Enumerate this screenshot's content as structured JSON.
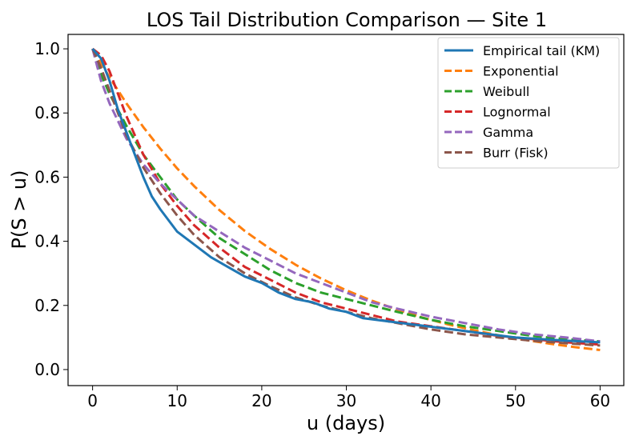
{
  "chart_data": {
    "type": "line",
    "title": "LOS Tail Distribution Comparison — Site 1",
    "xlabel": "u (days)",
    "ylabel": "P(S > u)",
    "xlim": [
      -2.9,
      62.8
    ],
    "ylim": [
      -0.05,
      1.045
    ],
    "xticks": [
      0,
      10,
      20,
      30,
      40,
      50,
      60
    ],
    "xtick_labels": [
      "0",
      "10",
      "20",
      "30",
      "40",
      "50",
      "60"
    ],
    "yticks": [
      0.0,
      0.2,
      0.4,
      0.6,
      0.8,
      1.0
    ],
    "ytick_labels": [
      "0.0",
      "0.2",
      "0.4",
      "0.6",
      "0.8",
      "1.0"
    ],
    "legend_position": "top-right",
    "grid": false,
    "series": [
      {
        "name": "Empirical tail (KM)",
        "color": "#1f77b4",
        "dash": "solid",
        "x": [
          0,
          1,
          2,
          3,
          4,
          5,
          6,
          7,
          8,
          10,
          12,
          14,
          16,
          18,
          20,
          22,
          24,
          26,
          28,
          30,
          32,
          35,
          38,
          41,
          44,
          47,
          50,
          53,
          56,
          60
        ],
        "y": [
          1.0,
          0.97,
          0.9,
          0.81,
          0.74,
          0.67,
          0.6,
          0.54,
          0.5,
          0.43,
          0.39,
          0.35,
          0.32,
          0.29,
          0.27,
          0.24,
          0.22,
          0.21,
          0.19,
          0.18,
          0.16,
          0.15,
          0.14,
          0.13,
          0.12,
          0.11,
          0.1,
          0.095,
          0.09,
          0.085
        ]
      },
      {
        "name": "Exponential",
        "color": "#ff7f0e",
        "dash": "dashed",
        "x": [
          0,
          2,
          4,
          6,
          8,
          10,
          12,
          15,
          18,
          21,
          24,
          27,
          30,
          33,
          36,
          39,
          42,
          45,
          48,
          51,
          54,
          57,
          60
        ],
        "y": [
          1.0,
          0.911,
          0.83,
          0.756,
          0.689,
          0.627,
          0.572,
          0.497,
          0.432,
          0.376,
          0.327,
          0.284,
          0.247,
          0.215,
          0.187,
          0.162,
          0.141,
          0.123,
          0.107,
          0.093,
          0.081,
          0.07,
          0.061
        ]
      },
      {
        "name": "Weibull",
        "color": "#2ca02c",
        "dash": "dashed",
        "x": [
          0,
          1,
          2,
          4,
          6,
          8,
          10,
          12,
          15,
          18,
          21,
          24,
          27,
          30,
          33,
          36,
          40,
          44,
          48,
          52,
          56,
          60
        ],
        "y": [
          1.0,
          0.92,
          0.86,
          0.76,
          0.67,
          0.6,
          0.53,
          0.48,
          0.41,
          0.36,
          0.31,
          0.27,
          0.24,
          0.22,
          0.2,
          0.18,
          0.155,
          0.135,
          0.12,
          0.105,
          0.095,
          0.088
        ]
      },
      {
        "name": "Lognormal",
        "color": "#d62728",
        "dash": "dashed",
        "x": [
          0,
          1,
          2,
          3,
          4,
          6,
          8,
          10,
          12,
          15,
          18,
          21,
          24,
          27,
          30,
          33,
          36,
          40,
          44,
          48,
          52,
          56,
          60
        ],
        "y": [
          1.0,
          0.98,
          0.93,
          0.86,
          0.79,
          0.67,
          0.58,
          0.51,
          0.45,
          0.38,
          0.32,
          0.28,
          0.24,
          0.21,
          0.19,
          0.17,
          0.15,
          0.135,
          0.12,
          0.105,
          0.095,
          0.085,
          0.078
        ]
      },
      {
        "name": "Gamma",
        "color": "#9467bd",
        "dash": "dashed",
        "x": [
          0,
          1,
          2,
          4,
          6,
          8,
          10,
          12,
          15,
          18,
          21,
          24,
          27,
          30,
          33,
          36,
          40,
          44,
          48,
          52,
          56,
          60
        ],
        "y": [
          1.0,
          0.9,
          0.83,
          0.72,
          0.64,
          0.58,
          0.53,
          0.48,
          0.43,
          0.38,
          0.34,
          0.3,
          0.27,
          0.24,
          0.21,
          0.19,
          0.165,
          0.145,
          0.125,
          0.11,
          0.1,
          0.088
        ]
      },
      {
        "name": "Burr (Fisk)",
        "color": "#8c564b",
        "dash": "dashed",
        "x": [
          0,
          1,
          2,
          3,
          4,
          6,
          8,
          10,
          12,
          15,
          18,
          21,
          24,
          27,
          30,
          33,
          36,
          40,
          44,
          48,
          52,
          56,
          60
        ],
        "y": [
          1.0,
          0.94,
          0.87,
          0.8,
          0.73,
          0.63,
          0.55,
          0.48,
          0.42,
          0.35,
          0.3,
          0.26,
          0.225,
          0.2,
          0.18,
          0.16,
          0.145,
          0.125,
          0.11,
          0.1,
          0.09,
          0.082,
          0.075
        ]
      }
    ]
  }
}
